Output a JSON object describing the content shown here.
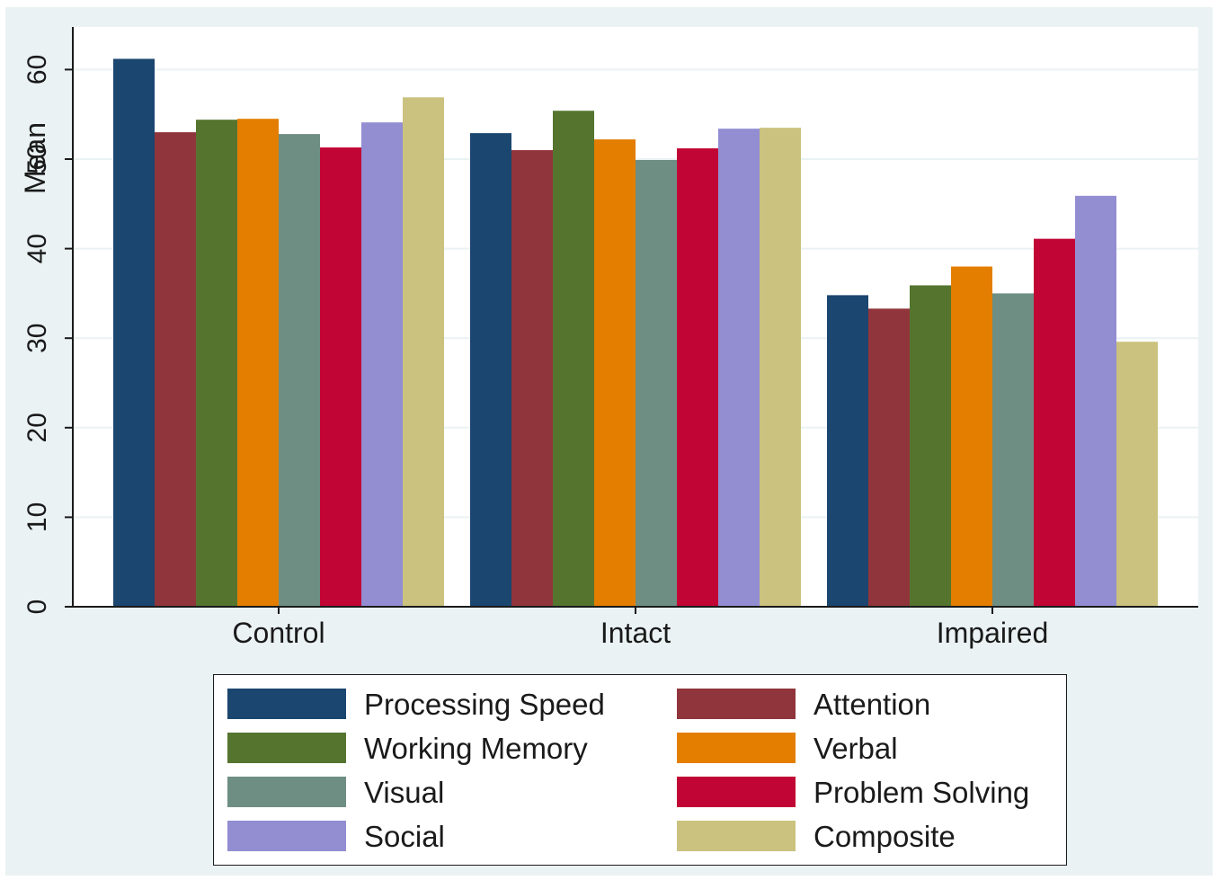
{
  "chart_data": {
    "type": "bar",
    "title": "",
    "xlabel": "",
    "ylabel": "Mean",
    "ylim": [
      0,
      65
    ],
    "yticks": [
      0,
      10,
      20,
      30,
      40,
      50,
      60
    ],
    "grid": true,
    "legend_position": "bottom",
    "categories": [
      "Control",
      "Intact",
      "Impaired"
    ],
    "series": [
      {
        "name": "Processing Speed",
        "color": "#1b4670",
        "values": [
          61.2,
          52.9,
          34.8
        ]
      },
      {
        "name": "Attention",
        "color": "#90353b",
        "values": [
          53.0,
          51.0,
          33.3
        ]
      },
      {
        "name": "Working Memory",
        "color": "#55752f",
        "values": [
          54.4,
          55.4,
          35.9
        ]
      },
      {
        "name": "Verbal",
        "color": "#e37e00",
        "values": [
          54.5,
          52.2,
          38.0
        ]
      },
      {
        "name": "Visual",
        "color": "#6e8e84",
        "values": [
          52.8,
          49.9,
          35.0
        ]
      },
      {
        "name": "Problem Solving",
        "color": "#c10534",
        "values": [
          51.3,
          51.2,
          41.1
        ]
      },
      {
        "name": "Social",
        "color": "#938dd2",
        "values": [
          54.1,
          53.4,
          45.9
        ]
      },
      {
        "name": "Composite",
        "color": "#cac27e",
        "values": [
          56.9,
          53.5,
          29.6
        ]
      }
    ]
  }
}
